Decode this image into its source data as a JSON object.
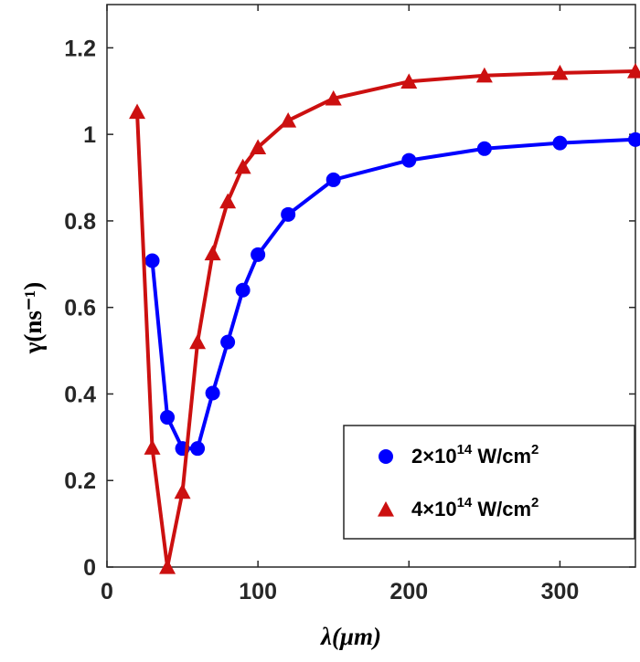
{
  "chart_data": {
    "type": "line",
    "title": "",
    "xlabel": "λ(μm)",
    "ylabel": "γ(ns⁻¹)",
    "xlim": [
      0,
      350
    ],
    "ylim": [
      0,
      1.3
    ],
    "xticks": [
      0,
      100,
      200,
      300
    ],
    "yticks": [
      0,
      0.2,
      0.4,
      0.6,
      0.8,
      1,
      1.2
    ],
    "xtick_labels": [
      "0",
      "100",
      "200",
      "300"
    ],
    "ytick_labels": [
      "0",
      "0.2",
      "0.4",
      "0.6",
      "0.8",
      "1",
      "1.2"
    ],
    "grid": false,
    "legend_position": "bottom-right",
    "series": [
      {
        "name": "2×10¹⁴ W/cm²",
        "marker": "circle",
        "color": "#0000ff",
        "x": [
          30,
          40,
          50,
          60,
          70,
          80,
          90,
          100,
          120,
          150,
          200,
          250,
          300,
          350
        ],
        "y": [
          0.708,
          0.346,
          0.274,
          0.274,
          0.402,
          0.52,
          0.64,
          0.722,
          0.815,
          0.895,
          0.94,
          0.967,
          0.98,
          0.988
        ]
      },
      {
        "name": "4×10¹⁴ W/cm²",
        "marker": "triangle",
        "color": "#cc1010",
        "x": [
          20,
          30,
          40,
          50,
          60,
          70,
          80,
          90,
          100,
          120,
          150,
          200,
          250,
          300,
          350
        ],
        "y": [
          1.052,
          0.276,
          0.0,
          0.174,
          0.52,
          0.725,
          0.845,
          0.925,
          0.97,
          1.032,
          1.083,
          1.122,
          1.136,
          1.142,
          1.146
        ]
      }
    ],
    "legend": [
      {
        "base": "2×10",
        "exp": "14",
        "unit": " W/cm",
        "unit_exp": "2"
      },
      {
        "base": "4×10",
        "exp": "14",
        "unit": " W/cm",
        "unit_exp": "2"
      }
    ]
  }
}
